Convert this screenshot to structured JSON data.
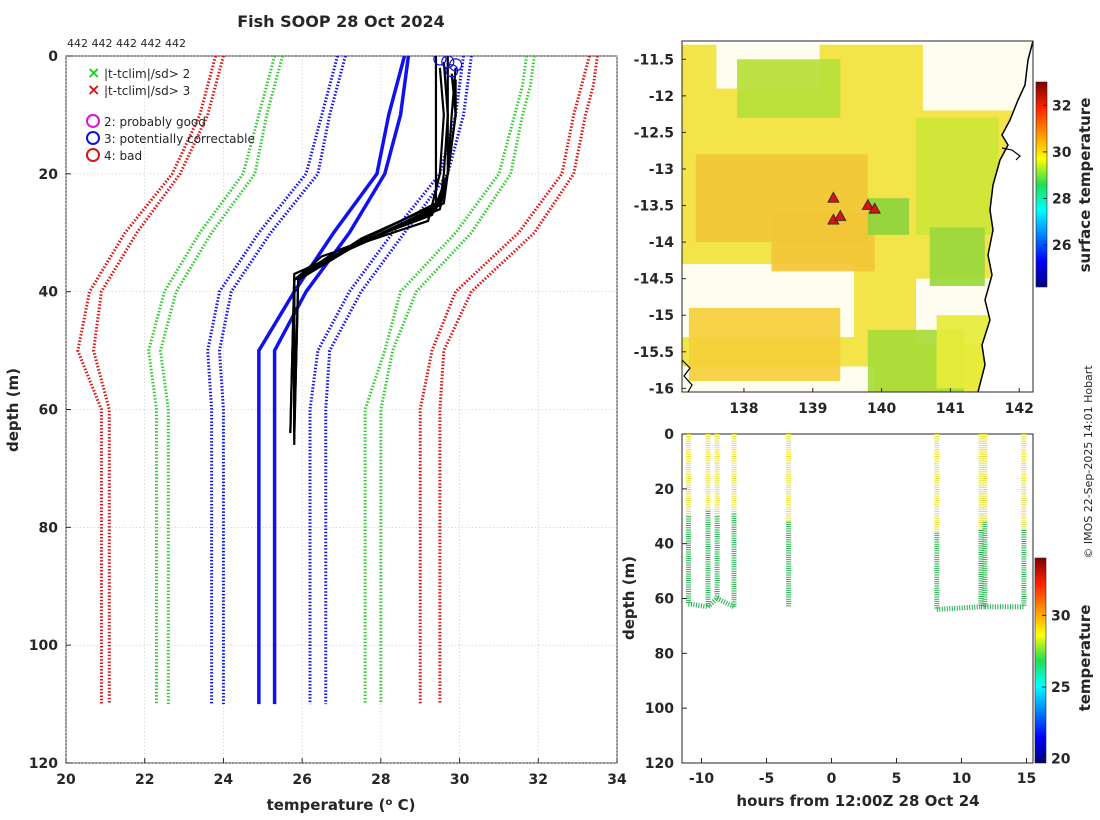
{
  "title": "Fish SOOP 28 Oct 2024",
  "count_label": "442 442 442 442 442",
  "watermark": "© IMOS 22-Sep-2025 14:01 Hobart",
  "legend": [
    {
      "symbol": "×",
      "color": "#22cc22",
      "label": "|t-tclim|/sd> 2"
    },
    {
      "symbol": "×",
      "color": "#dd1111",
      "label": "|t-tclim|/sd> 3"
    },
    {
      "symbol": "○",
      "color": "#dd11dd",
      "label": "2: probably good"
    },
    {
      "symbol": "○",
      "color": "#1111dd",
      "label": "3: potentially correctable"
    },
    {
      "symbol": "○",
      "color": "#dd1111",
      "label": "4: bad"
    }
  ],
  "chart_data": [
    {
      "type": "line",
      "name": "profile",
      "xlabel": "temperature (° C)",
      "ylabel": "depth (m)",
      "xlim": [
        20,
        34
      ],
      "ylim": [
        0,
        120
      ],
      "y_reversed": true,
      "xticks": [
        20,
        22,
        24,
        26,
        28,
        30,
        32,
        34
      ],
      "yticks": [
        0,
        20,
        40,
        60,
        80,
        100,
        120
      ],
      "grid": true,
      "depth_levels": [
        0,
        5,
        10,
        20,
        30,
        40,
        50,
        60,
        110
      ],
      "clim_envelopes": [
        {
          "name": "clim -3sd",
          "color": "#dd1111",
          "style": "dotted",
          "values": [
            23.8,
            23.6,
            23.4,
            22.7,
            21.5,
            20.6,
            20.3,
            20.9,
            20.9
          ]
        },
        {
          "name": "clim -3sd b",
          "color": "#dd1111",
          "style": "dotted",
          "values": [
            24.0,
            23.8,
            23.6,
            22.9,
            21.8,
            20.9,
            20.7,
            21.1,
            21.1
          ]
        },
        {
          "name": "clim -2sd",
          "color": "#33cc33",
          "style": "dotted",
          "values": [
            25.3,
            25.1,
            24.9,
            24.5,
            23.4,
            22.5,
            22.1,
            22.3,
            22.3
          ]
        },
        {
          "name": "clim -2sd b",
          "color": "#33cc33",
          "style": "dotted",
          "values": [
            25.5,
            25.3,
            25.1,
            24.8,
            23.7,
            22.8,
            22.4,
            22.6,
            22.6
          ]
        },
        {
          "name": "clim -1sd",
          "color": "#1111ee",
          "style": "dotted",
          "values": [
            26.9,
            26.7,
            26.5,
            26.1,
            24.9,
            23.9,
            23.6,
            23.7,
            23.7
          ]
        },
        {
          "name": "clim -1sd b",
          "color": "#1111ee",
          "style": "dotted",
          "values": [
            27.1,
            26.9,
            26.7,
            26.4,
            25.2,
            24.2,
            23.9,
            24.0,
            24.0
          ]
        },
        {
          "name": "clim +1sd",
          "color": "#1111ee",
          "style": "dotted",
          "values": [
            30.1,
            30.0,
            29.9,
            29.5,
            28.3,
            27.2,
            26.4,
            26.2,
            26.2
          ]
        },
        {
          "name": "clim +1sd b",
          "color": "#1111ee",
          "style": "dotted",
          "values": [
            30.3,
            30.2,
            30.1,
            29.7,
            28.6,
            27.5,
            26.7,
            26.6,
            26.6
          ]
        },
        {
          "name": "clim +2sd",
          "color": "#33cc33",
          "style": "dotted",
          "values": [
            31.7,
            31.6,
            31.4,
            31.0,
            29.9,
            28.5,
            28.1,
            27.6,
            27.6
          ]
        },
        {
          "name": "clim +2sd b",
          "color": "#33cc33",
          "style": "dotted",
          "values": [
            31.9,
            31.8,
            31.6,
            31.3,
            30.3,
            28.9,
            28.3,
            28.0,
            28.0
          ]
        },
        {
          "name": "clim +3sd",
          "color": "#dd1111",
          "style": "dotted",
          "values": [
            33.3,
            33.1,
            32.9,
            32.6,
            31.5,
            29.9,
            29.3,
            29.0,
            29.0
          ]
        },
        {
          "name": "clim +3sd b",
          "color": "#dd1111",
          "style": "dotted",
          "values": [
            33.5,
            33.4,
            33.2,
            32.9,
            31.9,
            30.3,
            29.6,
            29.5,
            29.5
          ]
        }
      ],
      "mean_profiles": [
        {
          "name": "mean a",
          "color": "#1111ee",
          "values": [
            28.6,
            28.4,
            28.2,
            27.9,
            26.8,
            25.8,
            24.9,
            24.9,
            24.9
          ]
        },
        {
          "name": "mean b",
          "color": "#1111ee",
          "values": [
            28.7,
            28.6,
            28.5,
            28.1,
            27.2,
            26.1,
            25.3,
            25.3,
            25.3
          ]
        }
      ],
      "profiles": [
        {
          "color": "#000000",
          "temps": [
            29.4,
            29.4,
            29.4,
            29.4,
            27.3,
            25.8,
            25.7
          ],
          "depths": [
            0,
            10,
            20,
            25,
            32,
            38,
            64
          ]
        },
        {
          "color": "#000000",
          "temps": [
            29.7,
            29.7,
            29.6,
            29.5,
            27.5,
            25.9,
            25.8
          ],
          "depths": [
            0,
            10,
            20,
            25,
            31,
            38,
            65
          ]
        },
        {
          "color": "#000000",
          "temps": [
            29.9,
            29.8,
            29.7,
            29.3,
            26.9,
            25.8,
            25.8
          ],
          "depths": [
            2,
            10,
            20,
            27,
            33,
            38,
            64
          ]
        },
        {
          "color": "#000000",
          "temps": [
            29.8,
            29.9,
            29.7,
            29.6,
            27.1,
            25.8,
            25.8
          ],
          "depths": [
            3,
            10,
            20,
            25,
            33,
            38,
            63
          ]
        },
        {
          "color": "#000000",
          "temps": [
            29.6,
            29.7,
            29.7,
            29.4,
            27.8,
            25.8,
            25.7
          ],
          "depths": [
            1,
            10,
            20,
            26,
            31,
            37,
            64
          ]
        },
        {
          "color": "#000000",
          "temps": [
            29.5,
            29.6,
            29.5,
            29.2,
            26.5,
            25.8,
            25.8
          ],
          "depths": [
            2,
            10,
            20,
            28,
            34,
            38,
            66
          ]
        },
        {
          "color": "#000000",
          "temps": [
            29.9,
            29.9,
            29.7,
            29.5,
            27.4,
            25.9,
            25.8
          ],
          "depths": [
            4,
            10,
            20,
            26,
            32,
            38,
            64
          ]
        }
      ],
      "flag_markers": [
        {
          "t": 29.5,
          "d": 0.5,
          "flag": 3
        },
        {
          "t": 29.7,
          "d": 1.0,
          "flag": 3
        },
        {
          "t": 29.9,
          "d": 1.5,
          "flag": 3
        },
        {
          "t": 29.8,
          "d": 2.5,
          "flag": 3
        }
      ]
    },
    {
      "type": "heatmap",
      "name": "map",
      "colorbar_label": "surface temperature",
      "xlim": [
        137.1,
        142.2
      ],
      "ylim": [
        -16.05,
        -11.25
      ],
      "xticks": [
        138,
        139,
        140,
        141,
        142
      ],
      "yticks": [
        -11.5,
        -12,
        -12.5,
        -13,
        -13.5,
        -14,
        -14.5,
        -15,
        -15.5,
        -16
      ],
      "clim": [
        24.2,
        33.0
      ],
      "colorbar_ticks": [
        26,
        28,
        30,
        32
      ],
      "stations": [
        {
          "lon": 139.3,
          "lat": -13.4
        },
        {
          "lon": 139.3,
          "lat": -13.7
        },
        {
          "lon": 139.4,
          "lat": -13.65
        },
        {
          "lon": 139.8,
          "lat": -13.5
        },
        {
          "lon": 139.9,
          "lat": -13.55
        }
      ]
    },
    {
      "type": "scatter",
      "name": "section",
      "xlabel": "hours from 12:00Z 28 Oct 24",
      "ylabel": "depth (m)",
      "colorbar_label": "temperature",
      "xlim": [
        -11.5,
        15.5
      ],
      "ylim": [
        0,
        120
      ],
      "y_reversed": true,
      "xticks": [
        -10,
        -5,
        0,
        5,
        10,
        15
      ],
      "yticks": [
        0,
        20,
        40,
        60,
        80,
        100,
        120
      ],
      "clim": [
        19.7,
        34.0
      ],
      "colorbar_ticks": [
        20,
        25,
        30
      ],
      "casts": [
        {
          "h": -11.0,
          "max_depth": 62,
          "mld": 30
        },
        {
          "h": -9.5,
          "max_depth": 63,
          "mld": 28
        },
        {
          "h": -8.8,
          "max_depth": 60,
          "mld": 30
        },
        {
          "h": -7.5,
          "max_depth": 63,
          "mld": 29
        },
        {
          "h": -3.3,
          "max_depth": 63,
          "mld": 32
        },
        {
          "h": 8.1,
          "max_depth": 64,
          "mld": 36
        },
        {
          "h": 11.5,
          "max_depth": 63,
          "mld": 35
        },
        {
          "h": 11.8,
          "max_depth": 63,
          "mld": 32
        },
        {
          "h": 14.8,
          "max_depth": 63,
          "mld": 35
        }
      ]
    }
  ]
}
